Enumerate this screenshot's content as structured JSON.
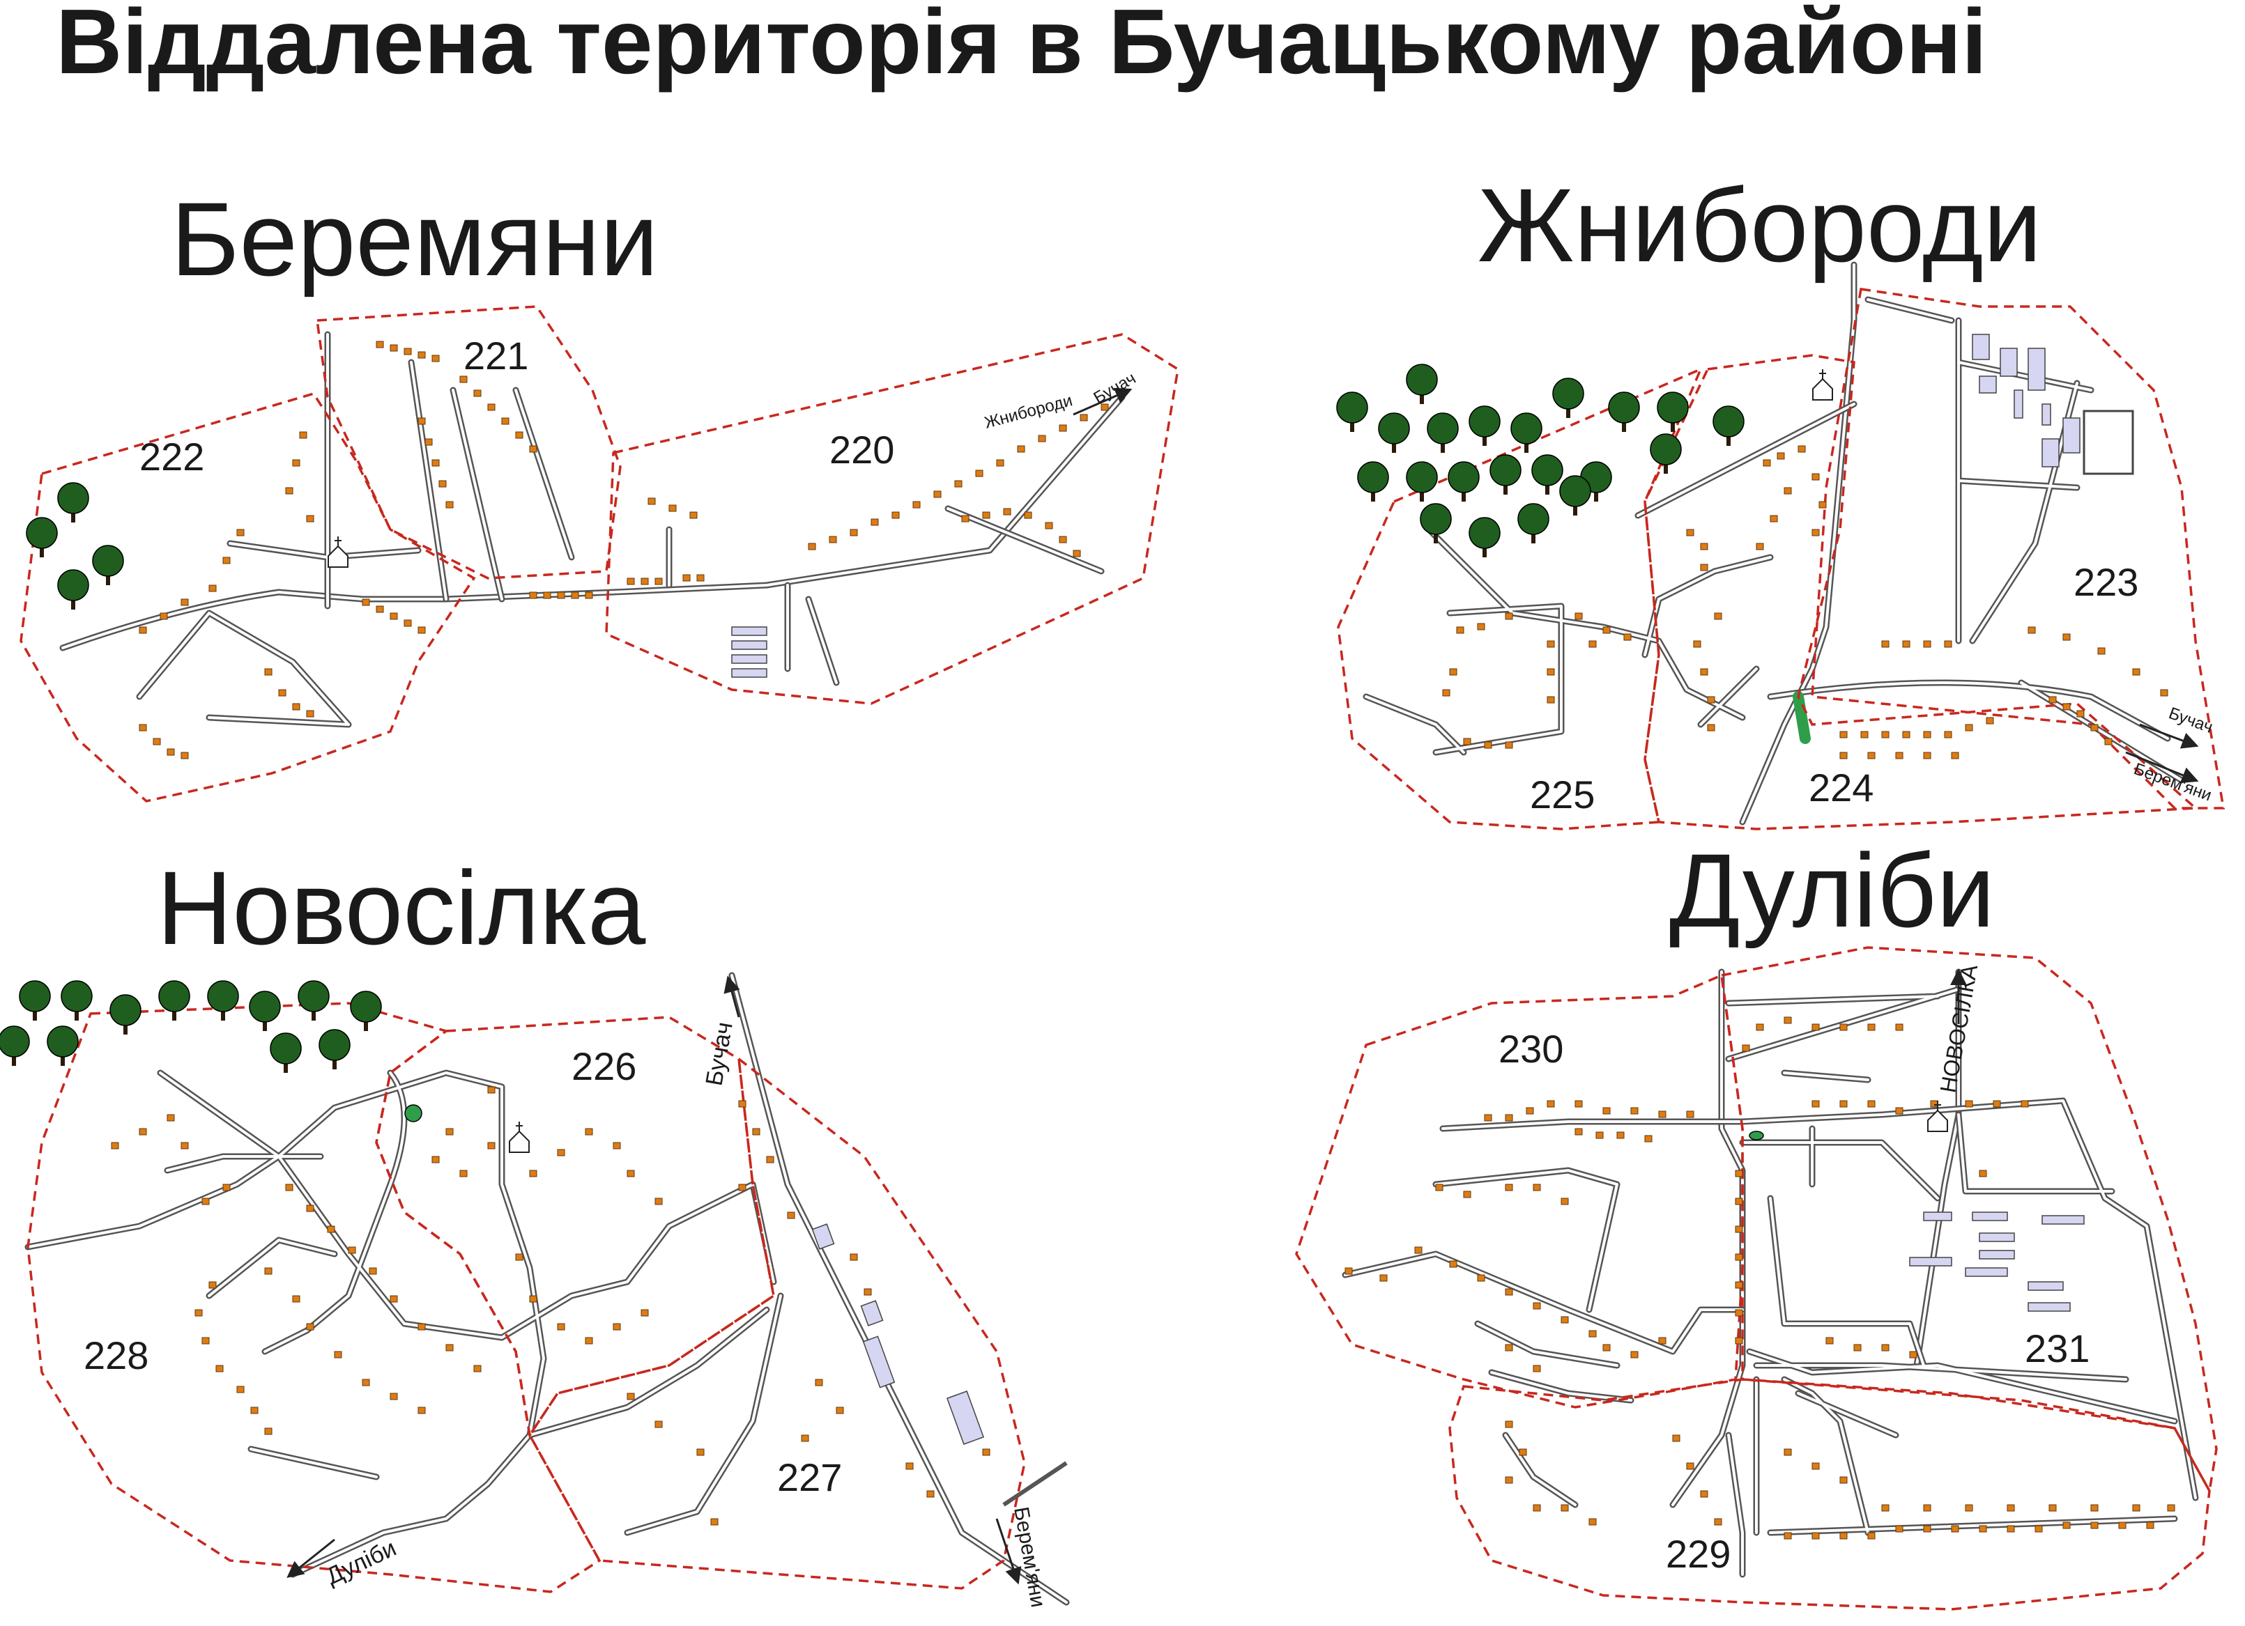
{
  "title": "Віддалена територія в Бучацькому районі",
  "villages": [
    {
      "name": "Беремяни",
      "plots": [
        "220",
        "221",
        "222"
      ]
    },
    {
      "name": "Жнибороди",
      "plots": [
        "223",
        "224",
        "225"
      ]
    },
    {
      "name": "Новосілка",
      "plots": [
        "226",
        "227",
        "228"
      ]
    },
    {
      "name": "Дуліби",
      "plots": [
        "229",
        "230",
        "231"
      ]
    }
  ],
  "road_labels": {
    "zhnyborody": "Жнибороди",
    "buchach": "Бучач",
    "beremiany": "Берем'яни",
    "dulibi": "Дуліби",
    "novosilka": "НОВОСІЛКА"
  },
  "colors": {
    "boundary": "#c8281e",
    "house": "#e07b12",
    "road": "#555555",
    "tree": "#1f5e1f",
    "facility": "#d6d6f2",
    "pond": "#2e9e4a"
  },
  "icons": [
    "church-icon",
    "tree-icon",
    "house-icon",
    "facility-icon",
    "direction-arrow-icon"
  ]
}
